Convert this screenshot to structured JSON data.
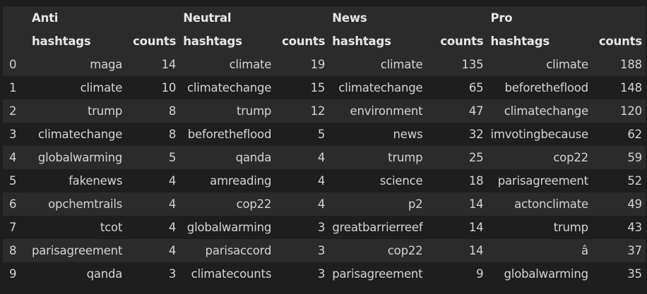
{
  "groups": [
    "Anti",
    "Neutral",
    "News",
    "Pro"
  ],
  "subheaders": {
    "hashtags": "hashtags",
    "counts": "counts"
  },
  "rows": [
    {
      "idx": "0",
      "cells": [
        [
          "maga",
          "14"
        ],
        [
          "climate",
          "19"
        ],
        [
          "climate",
          "135"
        ],
        [
          "climate",
          "188"
        ]
      ]
    },
    {
      "idx": "1",
      "cells": [
        [
          "climate",
          "10"
        ],
        [
          "climatechange",
          "15"
        ],
        [
          "climatechange",
          "65"
        ],
        [
          "beforetheflood",
          "148"
        ]
      ]
    },
    {
      "idx": "2",
      "cells": [
        [
          "trump",
          "8"
        ],
        [
          "trump",
          "12"
        ],
        [
          "environment",
          "47"
        ],
        [
          "climatechange",
          "120"
        ]
      ]
    },
    {
      "idx": "3",
      "cells": [
        [
          "climatechange",
          "8"
        ],
        [
          "beforetheflood",
          "5"
        ],
        [
          "news",
          "32"
        ],
        [
          "imvotingbecause",
          "62"
        ]
      ]
    },
    {
      "idx": "4",
      "cells": [
        [
          "globalwarming",
          "5"
        ],
        [
          "qanda",
          "4"
        ],
        [
          "trump",
          "25"
        ],
        [
          "cop22",
          "59"
        ]
      ]
    },
    {
      "idx": "5",
      "cells": [
        [
          "fakenews",
          "4"
        ],
        [
          "amreading",
          "4"
        ],
        [
          "science",
          "18"
        ],
        [
          "parisagreement",
          "52"
        ]
      ]
    },
    {
      "idx": "6",
      "cells": [
        [
          "opchemtrails",
          "4"
        ],
        [
          "cop22",
          "4"
        ],
        [
          "p2",
          "14"
        ],
        [
          "actonclimate",
          "49"
        ]
      ]
    },
    {
      "idx": "7",
      "cells": [
        [
          "tcot",
          "4"
        ],
        [
          "globalwarming",
          "3"
        ],
        [
          "greatbarrierreef",
          "14"
        ],
        [
          "trump",
          "43"
        ]
      ]
    },
    {
      "idx": "8",
      "cells": [
        [
          "parisagreement",
          "4"
        ],
        [
          "parisaccord",
          "3"
        ],
        [
          "cop22",
          "14"
        ],
        [
          "â",
          "37"
        ]
      ]
    },
    {
      "idx": "9",
      "cells": [
        [
          "qanda",
          "3"
        ],
        [
          "climatecounts",
          "3"
        ],
        [
          "parisagreement",
          "9"
        ],
        [
          "globalwarming",
          "35"
        ]
      ]
    }
  ]
}
